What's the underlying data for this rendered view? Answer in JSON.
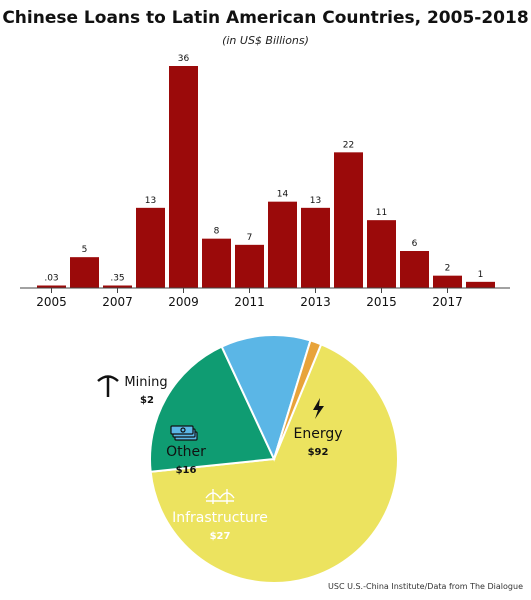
{
  "title": "Chinese Loans to Latin American Countries, 2005-2018",
  "subtitle": "(in US$ Billions)",
  "source": "USC U.S.-China Institute/Data from The Dialogue",
  "colors": {
    "bar": "#9b0a0a",
    "energy": "#ece35f",
    "infrastructure": "#0f9c72",
    "other": "#5bb6e6",
    "mining": "#e8a33a",
    "axis": "#444444"
  },
  "chart_data": [
    {
      "type": "bar",
      "title": "Chinese Loans to Latin American Countries, 2005-2018",
      "subtitle": "(in US$ Billions)",
      "categories": [
        "2005",
        "2006",
        "2007",
        "2008",
        "2009",
        "2010",
        "2011",
        "2012",
        "2013",
        "2014",
        "2015",
        "2016",
        "2017",
        "2018"
      ],
      "values": [
        0.03,
        5,
        0.35,
        13,
        36,
        8,
        7,
        14,
        13,
        22,
        11,
        6,
        2,
        1
      ],
      "value_labels": [
        ".03",
        "5",
        ".35",
        "13",
        "36",
        "8",
        "7",
        "14",
        "13",
        "22",
        "11",
        "6",
        "2",
        "1"
      ],
      "tick_labels": [
        "2005",
        "2007",
        "2009",
        "2011",
        "2013",
        "2015",
        "2017"
      ],
      "tick_categories": [
        "2005",
        "2007",
        "2009",
        "2011",
        "2013",
        "2015",
        "2017"
      ],
      "ylim": [
        0,
        36
      ],
      "grid": false
    },
    {
      "type": "pie",
      "slices": [
        {
          "name": "Energy",
          "value": 92,
          "label": "$92",
          "icon": "lightning-icon",
          "color": "#ece35f"
        },
        {
          "name": "Infrastructure",
          "value": 27,
          "label": "$27",
          "icon": "bridge-icon",
          "color": "#0f9c72"
        },
        {
          "name": "Other",
          "value": 16,
          "label": "$16",
          "icon": "money-stack-icon",
          "color": "#5bb6e6"
        },
        {
          "name": "Mining",
          "value": 2,
          "label": "$2",
          "icon": "pickaxe-icon",
          "color": "#e8a33a"
        }
      ]
    }
  ]
}
